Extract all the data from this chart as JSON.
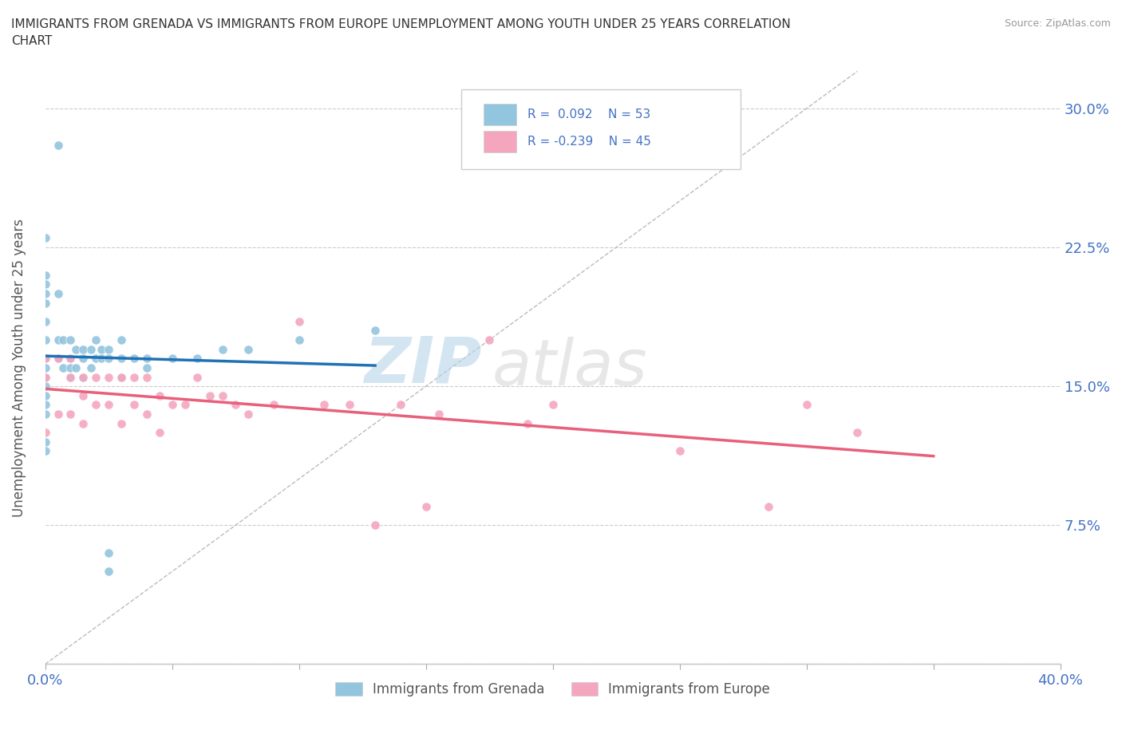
{
  "title": "IMMIGRANTS FROM GRENADA VS IMMIGRANTS FROM EUROPE UNEMPLOYMENT AMONG YOUTH UNDER 25 YEARS CORRELATION\nCHART",
  "source": "Source: ZipAtlas.com",
  "ylabel": "Unemployment Among Youth under 25 years",
  "xlim": [
    0.0,
    0.4
  ],
  "ylim": [
    0.0,
    0.32
  ],
  "xticks": [
    0.0,
    0.05,
    0.1,
    0.15,
    0.2,
    0.25,
    0.3,
    0.35,
    0.4
  ],
  "yticks": [
    0.0,
    0.075,
    0.15,
    0.225,
    0.3
  ],
  "ytick_labels": [
    "",
    "7.5%",
    "15.0%",
    "22.5%",
    "30.0%"
  ],
  "color_grenada": "#92c5de",
  "color_europe": "#f4a6be",
  "color_trendline_grenada": "#2171b5",
  "color_trendline_europe": "#e8607a",
  "watermark_zip": "ZIP",
  "watermark_atlas": "atlas",
  "grenada_x": [
    0.005,
    0.0,
    0.0,
    0.0,
    0.0,
    0.0,
    0.0,
    0.0,
    0.0,
    0.0,
    0.0,
    0.0,
    0.0,
    0.0,
    0.0,
    0.0,
    0.0,
    0.005,
    0.005,
    0.005,
    0.007,
    0.007,
    0.01,
    0.01,
    0.01,
    0.01,
    0.012,
    0.012,
    0.015,
    0.015,
    0.015,
    0.018,
    0.018,
    0.02,
    0.02,
    0.022,
    0.022,
    0.025,
    0.025,
    0.025,
    0.025,
    0.03,
    0.03,
    0.03,
    0.035,
    0.04,
    0.04,
    0.05,
    0.06,
    0.07,
    0.08,
    0.1,
    0.13
  ],
  "grenada_y": [
    0.28,
    0.23,
    0.21,
    0.205,
    0.2,
    0.195,
    0.185,
    0.175,
    0.165,
    0.16,
    0.155,
    0.15,
    0.145,
    0.14,
    0.135,
    0.12,
    0.115,
    0.2,
    0.175,
    0.165,
    0.175,
    0.16,
    0.175,
    0.165,
    0.16,
    0.155,
    0.17,
    0.16,
    0.17,
    0.165,
    0.155,
    0.17,
    0.16,
    0.175,
    0.165,
    0.17,
    0.165,
    0.17,
    0.165,
    0.06,
    0.05,
    0.175,
    0.165,
    0.155,
    0.165,
    0.165,
    0.16,
    0.165,
    0.165,
    0.17,
    0.17,
    0.175,
    0.18
  ],
  "europe_x": [
    0.0,
    0.0,
    0.0,
    0.005,
    0.005,
    0.01,
    0.01,
    0.01,
    0.015,
    0.015,
    0.015,
    0.02,
    0.02,
    0.025,
    0.025,
    0.03,
    0.03,
    0.035,
    0.035,
    0.04,
    0.04,
    0.045,
    0.045,
    0.05,
    0.055,
    0.06,
    0.065,
    0.07,
    0.075,
    0.08,
    0.09,
    0.1,
    0.11,
    0.12,
    0.13,
    0.14,
    0.15,
    0.155,
    0.175,
    0.19,
    0.2,
    0.25,
    0.285,
    0.3,
    0.32
  ],
  "europe_y": [
    0.165,
    0.155,
    0.125,
    0.165,
    0.135,
    0.165,
    0.155,
    0.135,
    0.155,
    0.145,
    0.13,
    0.155,
    0.14,
    0.155,
    0.14,
    0.155,
    0.13,
    0.155,
    0.14,
    0.155,
    0.135,
    0.145,
    0.125,
    0.14,
    0.14,
    0.155,
    0.145,
    0.145,
    0.14,
    0.135,
    0.14,
    0.185,
    0.14,
    0.14,
    0.075,
    0.14,
    0.085,
    0.135,
    0.175,
    0.13,
    0.14,
    0.115,
    0.085,
    0.14,
    0.125
  ]
}
